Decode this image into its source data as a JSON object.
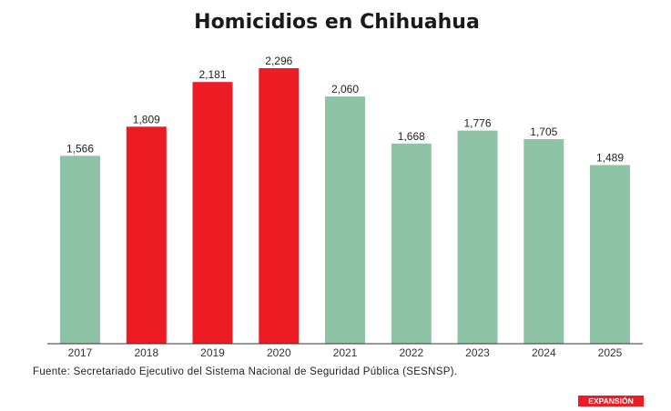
{
  "chart_data": {
    "type": "bar",
    "title": "Homicidios en Chihuahua",
    "categories": [
      "2017",
      "2018",
      "2019",
      "2020",
      "2021",
      "2022",
      "2023",
      "2024",
      "2025"
    ],
    "values": [
      1566,
      1809,
      2181,
      2296,
      2060,
      1668,
      1776,
      1705,
      1489
    ],
    "value_labels": [
      "1,566",
      "1,809",
      "2,181",
      "2,296",
      "2,060",
      "1,668",
      "1,776",
      "1,705",
      "1,489"
    ],
    "highlight": [
      false,
      true,
      true,
      true,
      false,
      false,
      false,
      false,
      false
    ],
    "colors": {
      "default": "#8ec3a7",
      "highlight": "#ed1c24"
    },
    "ylim": [
      0,
      2296
    ],
    "xlabel": "",
    "ylabel": "",
    "grid": false
  },
  "source": "Fuente: Secretariado Ejecutivo del Sistema Nacional de Seguridad Pública (SESNSP).",
  "brand": {
    "name": "EXPANSIÓN",
    "color": "#ed1c24"
  }
}
